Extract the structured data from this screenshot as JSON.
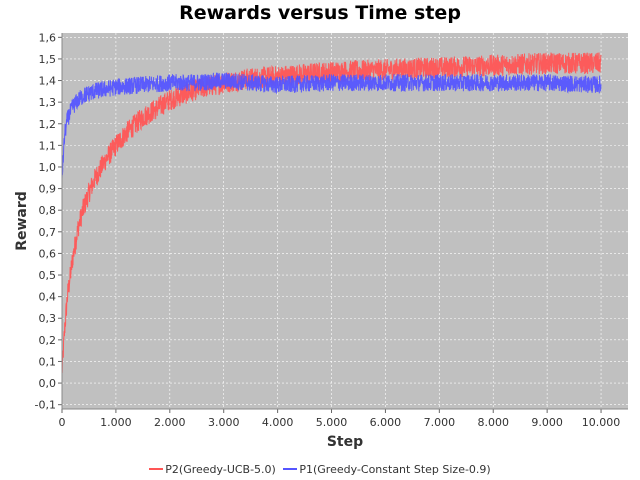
{
  "chart_data": {
    "type": "line",
    "title": "Rewards versus Time step",
    "xlabel": "Step",
    "ylabel": "Reward",
    "xlim": [
      0,
      10500
    ],
    "ylim": [
      -0.12,
      1.62
    ],
    "x_ticks": [
      0,
      1000,
      2000,
      3000,
      4000,
      5000,
      6000,
      7000,
      8000,
      9000,
      10000
    ],
    "x_tick_labels": [
      "0",
      "1.000",
      "2.000",
      "3.000",
      "4.000",
      "5.000",
      "6.000",
      "7.000",
      "8.000",
      "9.000",
      "10.000"
    ],
    "y_ticks": [
      -0.1,
      0.0,
      0.1,
      0.2,
      0.3,
      0.4,
      0.5,
      0.6,
      0.7,
      0.8,
      0.9,
      1.0,
      1.1,
      1.2,
      1.3,
      1.4,
      1.5,
      1.6
    ],
    "y_tick_labels": [
      "-0,1",
      "0,0",
      "0,1",
      "0,2",
      "0,3",
      "0,4",
      "0,5",
      "0,6",
      "0,7",
      "0,8",
      "0,9",
      "1,0",
      "1,1",
      "1,2",
      "1,3",
      "1,4",
      "1,5",
      "1,6"
    ],
    "grid": true,
    "background_color": "#c0c0c0",
    "grid_color": "#ffffff",
    "legend_position": "bottom",
    "series": [
      {
        "name": "P2(Greedy-UCB-5.0)",
        "color": "#ff5555",
        "x": [
          0,
          50,
          100,
          200,
          300,
          400,
          500,
          600,
          800,
          1000,
          1200,
          1500,
          2000,
          2500,
          3000,
          3500,
          4000,
          5000,
          6000,
          7000,
          8000,
          9000,
          10000
        ],
        "y": [
          0.05,
          0.25,
          0.4,
          0.58,
          0.72,
          0.81,
          0.88,
          0.94,
          1.03,
          1.1,
          1.16,
          1.23,
          1.31,
          1.36,
          1.39,
          1.41,
          1.42,
          1.44,
          1.45,
          1.46,
          1.47,
          1.48,
          1.48
        ],
        "band": 0.05
      },
      {
        "name": "P1(Greedy-Constant Step Size-0.9)",
        "color": "#5555ff",
        "x": [
          0,
          50,
          100,
          200,
          300,
          400,
          600,
          800,
          1000,
          1500,
          2000,
          2500,
          3000,
          4000,
          5000,
          6000,
          7000,
          8000,
          9000,
          10000
        ],
        "y": [
          0.95,
          1.15,
          1.22,
          1.28,
          1.31,
          1.33,
          1.35,
          1.36,
          1.37,
          1.38,
          1.39,
          1.39,
          1.4,
          1.38,
          1.39,
          1.39,
          1.39,
          1.39,
          1.39,
          1.38
        ],
        "band": 0.04
      }
    ]
  }
}
